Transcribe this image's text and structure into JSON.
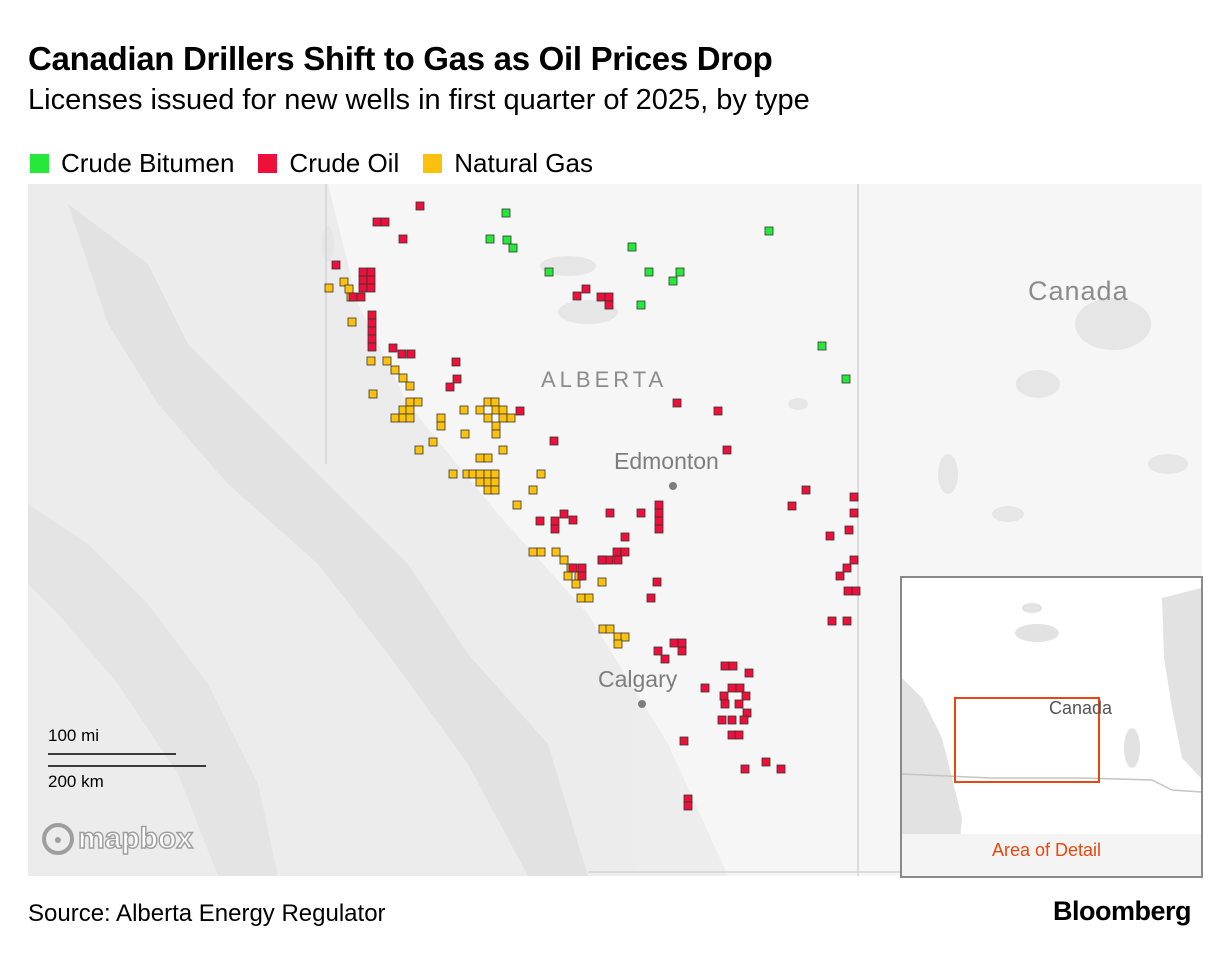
{
  "header": {
    "title": "Canadian Drillers Shift to Gas as Oil Prices Drop",
    "subtitle": "Licenses issued for new wells in first quarter of 2025, by type"
  },
  "legend": [
    {
      "label": "Crude Bitumen",
      "color": "#24e93a"
    },
    {
      "label": "Crude Oil",
      "color": "#ee0f3a"
    },
    {
      "label": "Natural Gas",
      "color": "#fcc10c"
    }
  ],
  "map": {
    "labels": {
      "province": "ALBERTA",
      "country": "Canada",
      "city_edmonton": "Edmonton",
      "city_calgary": "Calgary"
    },
    "scale": {
      "miles": "100 mi",
      "km": "200 km"
    },
    "attribution": "mapbox"
  },
  "inset": {
    "country_label": "Canada",
    "detail_label": "Area of Detail",
    "detail_color": "#e8470f"
  },
  "footer": {
    "source": "Source: Alberta Energy Regulator",
    "brand": "Bloomberg"
  }
}
